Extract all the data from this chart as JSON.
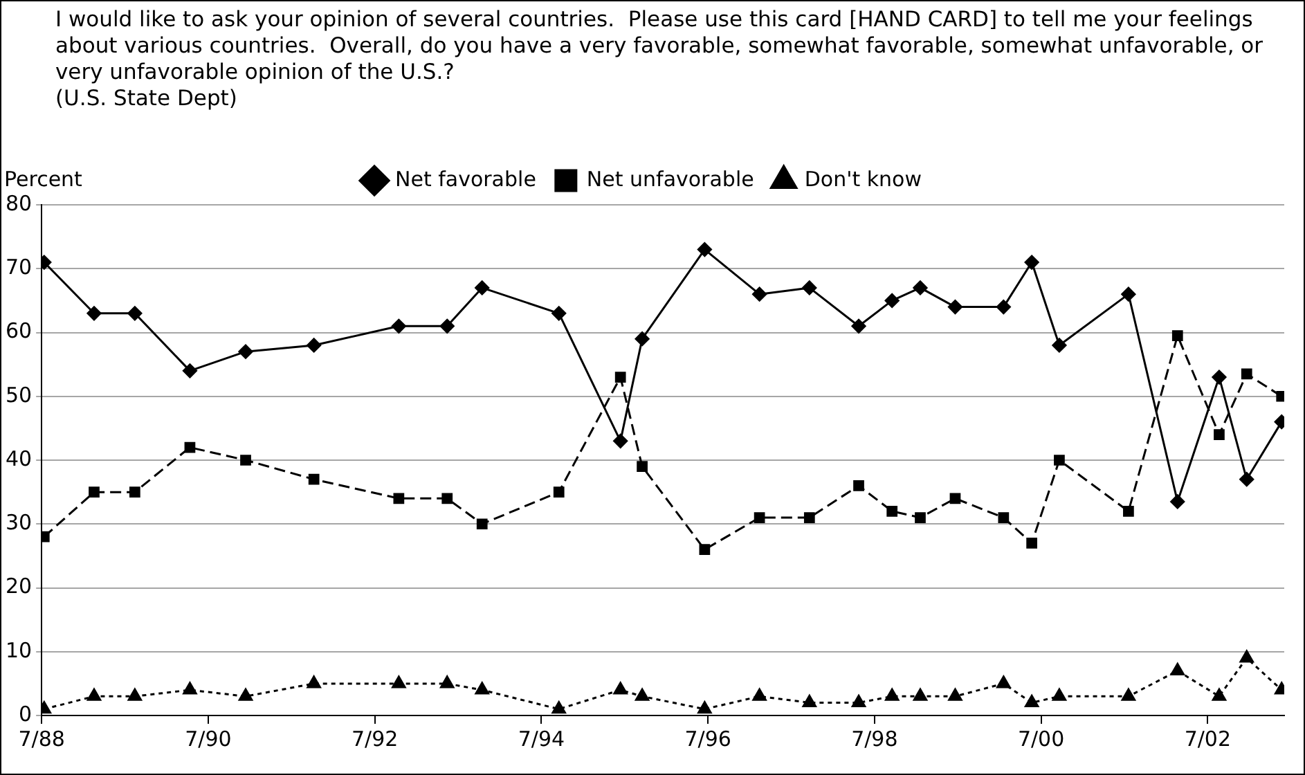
{
  "chart_data": {
    "type": "line",
    "title": "I would like to ask your opinion of several countries.  Please use this card [HAND CARD] to tell me your feelings about various countries.  Overall, do you have a very favorable, somewhat favorable, somewhat unfavorable, or very unfavorable opinion of the U.S.?",
    "subtitle": "(U.S. State Dept)",
    "ylabel": "Percent",
    "x": [
      "1988-07-12",
      "1989-02-18",
      "1989-08-14",
      "1990-04-12",
      "1990-12-13",
      "1991-10-08",
      "1992-10-15",
      "1993-05-14",
      "1993-10-15",
      "1994-09-17",
      "1995-06-13",
      "1995-09-17",
      "1996-06-17",
      "1997-02-14",
      "1997-09-20",
      "1998-04-23",
      "1998-09-17",
      "1999-01-19",
      "1999-06-20",
      "2000-01-19",
      "2000-05-21",
      "2000-09-20",
      "2001-07-19",
      "2002-02-21",
      "2002-08-21",
      "2002-12-20",
      "2003-05-21"
    ],
    "series": [
      {
        "name": "Net favorable",
        "color": "#000000",
        "marker": "diamond",
        "line_style": "solid",
        "values": [
          71,
          63,
          63,
          54,
          57,
          58,
          61,
          61,
          67,
          63,
          43,
          59,
          73,
          66,
          67,
          61,
          65,
          67,
          64,
          64,
          71,
          58,
          66,
          33.5,
          53,
          37,
          46
        ]
      },
      {
        "name": "Net unfavorable",
        "color": "#000000",
        "marker": "square",
        "line_style": "dashed",
        "values": [
          28,
          35,
          35,
          42,
          40,
          37,
          34,
          34,
          30,
          35,
          53,
          39,
          26,
          31,
          31,
          36,
          32,
          31,
          34,
          31,
          27,
          40,
          32,
          59.5,
          44,
          53.5,
          50
        ]
      },
      {
        "name": "Don't know",
        "color": "#000000",
        "marker": "triangle",
        "line_style": "dotted",
        "values": [
          1,
          3,
          3,
          4,
          3,
          5,
          5,
          5,
          4,
          1,
          4,
          3,
          1,
          3,
          2,
          2,
          3,
          3,
          3,
          5,
          2,
          3,
          3,
          7,
          3,
          9,
          4
        ]
      }
    ],
    "xlim": [
      "1988-07-01",
      "2003-06-02"
    ],
    "xticks": [
      {
        "value": "1988-07",
        "label": "7/88"
      },
      {
        "value": "1990-07",
        "label": "7/90"
      },
      {
        "value": "1992-07",
        "label": "7/92"
      },
      {
        "value": "1994-07",
        "label": "7/94"
      },
      {
        "value": "1996-07",
        "label": "7/96"
      },
      {
        "value": "1998-07",
        "label": "7/98"
      },
      {
        "value": "2000-07",
        "label": "7/00"
      },
      {
        "value": "2002-07",
        "label": "7/02"
      }
    ],
    "ylim": [
      0,
      80
    ],
    "yticks": [
      0,
      10,
      20,
      30,
      40,
      50,
      60,
      70,
      80
    ],
    "grid": "y",
    "legend": "top"
  }
}
